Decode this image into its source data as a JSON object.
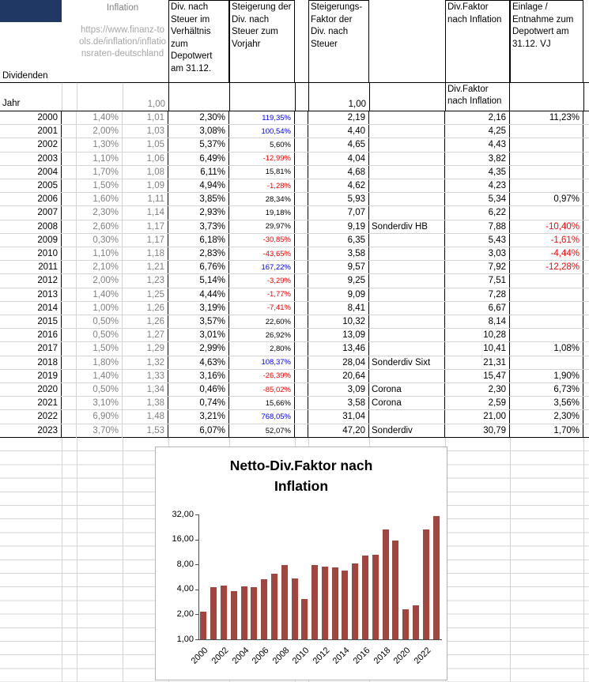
{
  "palette": {
    "corner_cell": "#1f3864",
    "muted_text": "#808080",
    "link_text": "#a6a6a6",
    "negative": "#ff0000",
    "highlight_positive": "#0000ff",
    "bar": "#a2453e",
    "grid_line": "#d4d4d4"
  },
  "sheet": {
    "headers": {
      "dividenden": "Dividenden",
      "inflation_title": "Inflation",
      "inflation_url": "https://www.finanz-tools.de/inflation/inflationsraten-deutschland",
      "div_nach_steuer": "Div. nach Steuer im Verhältnis zum Depotwert am 31.12.",
      "steigerung": "Steigerung der Div. nach Steuer zum Vorjahr",
      "steigerungs_faktor": "Steigerungs-Faktor der Div. nach Steuer",
      "div_faktor": "Div.Faktor nach Inflation",
      "einlage": "Einlage / Entnahme zum Depotwert am 31.12. VJ",
      "jahr": "Jahr",
      "div_faktor_sub": "Div.Faktor nach Inflation",
      "inflation_base": "1,00",
      "faktor_base": "1,00"
    },
    "rows": [
      {
        "year": "2000",
        "inflation": "1,40%",
        "factor": "1,01",
        "div": "2,30%",
        "steig": "119,35%",
        "sfaktor": "2,19",
        "note": "",
        "dfni": "2,16",
        "einlage": "11,23%"
      },
      {
        "year": "2001",
        "inflation": "2,00%",
        "factor": "1,03",
        "div": "3,08%",
        "steig": "100,54%",
        "sfaktor": "4,40",
        "note": "",
        "dfni": "4,25",
        "einlage": ""
      },
      {
        "year": "2002",
        "inflation": "1,30%",
        "factor": "1,05",
        "div": "5,37%",
        "steig": "5,60%",
        "sfaktor": "4,65",
        "note": "",
        "dfni": "4,43",
        "einlage": ""
      },
      {
        "year": "2003",
        "inflation": "1,10%",
        "factor": "1,06",
        "div": "6,49%",
        "steig": "-12,99%",
        "sfaktor": "4,04",
        "note": "",
        "dfni": "3,82",
        "einlage": ""
      },
      {
        "year": "2004",
        "inflation": "1,70%",
        "factor": "1,08",
        "div": "6,11%",
        "steig": "15,81%",
        "sfaktor": "4,68",
        "note": "",
        "dfni": "4,35",
        "einlage": ""
      },
      {
        "year": "2005",
        "inflation": "1,50%",
        "factor": "1,09",
        "div": "4,94%",
        "steig": "-1,28%",
        "sfaktor": "4,62",
        "note": "",
        "dfni": "4,23",
        "einlage": ""
      },
      {
        "year": "2006",
        "inflation": "1,60%",
        "factor": "1,11",
        "div": "3,85%",
        "steig": "28,34%",
        "sfaktor": "5,93",
        "note": "",
        "dfni": "5,34",
        "einlage": "0,97%"
      },
      {
        "year": "2007",
        "inflation": "2,30%",
        "factor": "1,14",
        "div": "2,93%",
        "steig": "19,18%",
        "sfaktor": "7,07",
        "note": "",
        "dfni": "6,22",
        "einlage": ""
      },
      {
        "year": "2008",
        "inflation": "2,60%",
        "factor": "1,17",
        "div": "3,73%",
        "steig": "29,97%",
        "sfaktor": "9,19",
        "note": "Sonderdiv HB",
        "dfni": "7,88",
        "einlage": "-10,40%"
      },
      {
        "year": "2009",
        "inflation": "0,30%",
        "factor": "1,17",
        "div": "6,18%",
        "steig": "-30,85%",
        "sfaktor": "6,35",
        "note": "",
        "dfni": "5,43",
        "einlage": "-1,61%"
      },
      {
        "year": "2010",
        "inflation": "1,10%",
        "factor": "1,18",
        "div": "2,83%",
        "steig": "-43,65%",
        "sfaktor": "3,58",
        "note": "",
        "dfni": "3,03",
        "einlage": "-4,44%"
      },
      {
        "year": "2011",
        "inflation": "2,10%",
        "factor": "1,21",
        "div": "6,76%",
        "steig": "167,22%",
        "sfaktor": "9,57",
        "note": "",
        "dfni": "7,92",
        "einlage": "-12,28%"
      },
      {
        "year": "2012",
        "inflation": "2,00%",
        "factor": "1,23",
        "div": "5,14%",
        "steig": "-3,29%",
        "sfaktor": "9,25",
        "note": "",
        "dfni": "7,51",
        "einlage": ""
      },
      {
        "year": "2013",
        "inflation": "1,40%",
        "factor": "1,25",
        "div": "4,44%",
        "steig": "-1,77%",
        "sfaktor": "9,09",
        "note": "",
        "dfni": "7,28",
        "einlage": ""
      },
      {
        "year": "2014",
        "inflation": "1,00%",
        "factor": "1,26",
        "div": "3,19%",
        "steig": "-7,41%",
        "sfaktor": "8,41",
        "note": "",
        "dfni": "6,67",
        "einlage": ""
      },
      {
        "year": "2015",
        "inflation": "0,50%",
        "factor": "1,26",
        "div": "3,57%",
        "steig": "22,60%",
        "sfaktor": "10,32",
        "note": "",
        "dfni": "8,14",
        "einlage": ""
      },
      {
        "year": "2016",
        "inflation": "0,50%",
        "factor": "1,27",
        "div": "3,01%",
        "steig": "26,92%",
        "sfaktor": "13,09",
        "note": "",
        "dfni": "10,28",
        "einlage": ""
      },
      {
        "year": "2017",
        "inflation": "1,50%",
        "factor": "1,29",
        "div": "2,99%",
        "steig": "2,80%",
        "sfaktor": "13,46",
        "note": "",
        "dfni": "10,41",
        "einlage": "1,08%"
      },
      {
        "year": "2018",
        "inflation": "1,80%",
        "factor": "1,32",
        "div": "4,63%",
        "steig": "108,37%",
        "sfaktor": "28,04",
        "note": "Sonderdiv Sixt",
        "dfni": "21,31",
        "einlage": ""
      },
      {
        "year": "2019",
        "inflation": "1,40%",
        "factor": "1,33",
        "div": "3,16%",
        "steig": "-26,39%",
        "sfaktor": "20,64",
        "note": "",
        "dfni": "15,47",
        "einlage": "1,90%"
      },
      {
        "year": "2020",
        "inflation": "0,50%",
        "factor": "1,34",
        "div": "0,46%",
        "steig": "-85,02%",
        "sfaktor": "3,09",
        "note": "Corona",
        "dfni": "2,30",
        "einlage": "6,73%"
      },
      {
        "year": "2021",
        "inflation": "3,10%",
        "factor": "1,38",
        "div": "0,74%",
        "steig": "15,66%",
        "sfaktor": "3,58",
        "note": "Corona",
        "dfni": "2,59",
        "einlage": "3,56%"
      },
      {
        "year": "2022",
        "inflation": "6,90%",
        "factor": "1,48",
        "div": "3,21%",
        "steig": "768,05%",
        "sfaktor": "31,04",
        "note": "",
        "dfni": "21,00",
        "einlage": "2,30%"
      },
      {
        "year": "2023",
        "inflation": "3,70%",
        "factor": "1,53",
        "div": "6,07%",
        "steig": "52,07%",
        "sfaktor": "47,20",
        "note": "Sonderdiv",
        "dfni": "30,79",
        "einlage": "1,70%"
      }
    ]
  },
  "chart_data": {
    "type": "bar",
    "title": "Netto-Div.Faktor nach Inflation",
    "categories": [
      "2000",
      "2001",
      "2002",
      "2003",
      "2004",
      "2005",
      "2006",
      "2007",
      "2008",
      "2009",
      "2010",
      "2011",
      "2012",
      "2013",
      "2014",
      "2015",
      "2016",
      "2017",
      "2018",
      "2019",
      "2020",
      "2021",
      "2022",
      "2023"
    ],
    "values": [
      2.16,
      4.25,
      4.43,
      3.82,
      4.35,
      4.23,
      5.34,
      6.22,
      7.88,
      5.43,
      3.03,
      7.92,
      7.51,
      7.28,
      6.67,
      8.14,
      10.28,
      10.41,
      21.31,
      15.47,
      2.3,
      2.59,
      21.0,
      30.79
    ],
    "y_scale": "log2",
    "ylim": [
      1,
      32
    ],
    "y_ticks": [
      "32,00",
      "16,00",
      "8,00",
      "4,00",
      "2,00",
      "1,00"
    ],
    "x_tick_labels": [
      "2000",
      "2002",
      "2004",
      "2006",
      "2008",
      "2010",
      "2012",
      "2014",
      "2016",
      "2018",
      "2020",
      "2022"
    ],
    "bar_color": "#a2453e",
    "grid": false,
    "legend": false,
    "xlabel": "",
    "ylabel": ""
  }
}
